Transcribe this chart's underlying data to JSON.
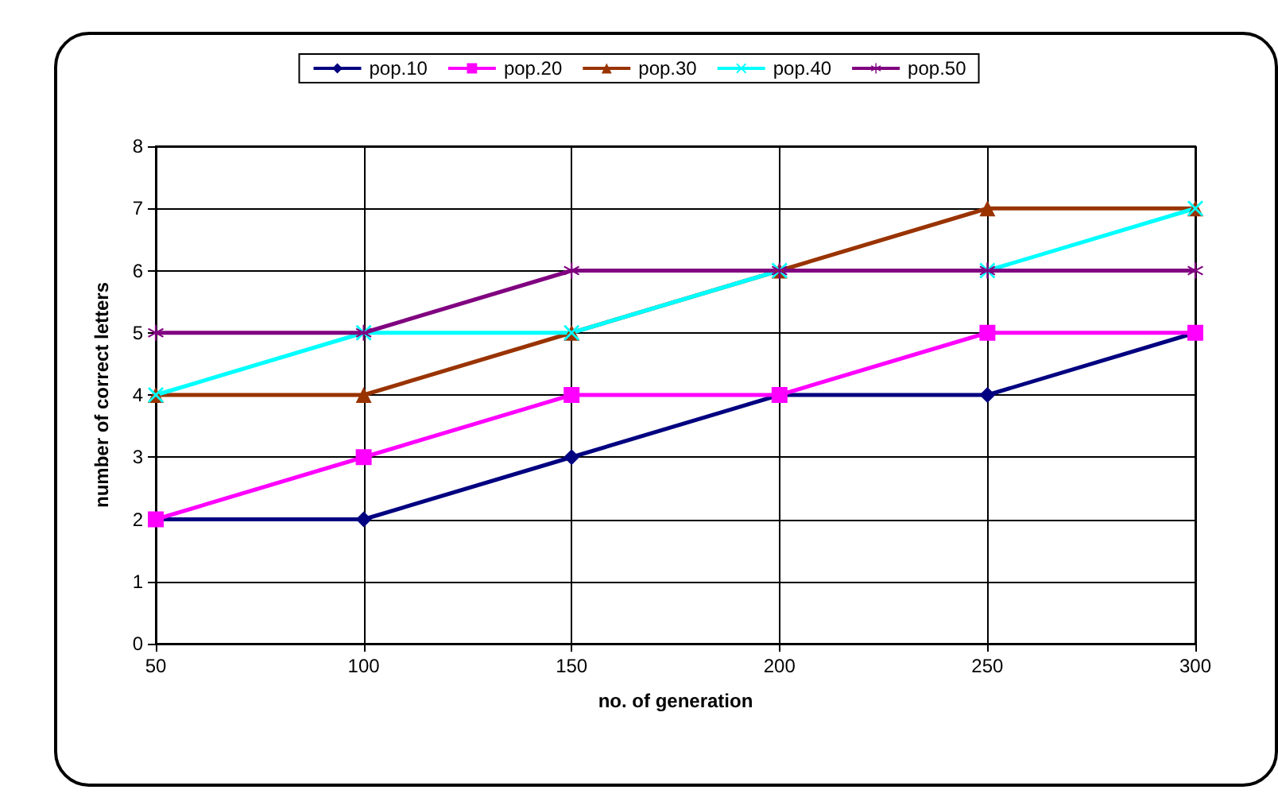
{
  "chart_data": {
    "type": "line",
    "xlabel": "no. of generation",
    "ylabel": "number of correct letters",
    "categories": [
      "50",
      "100",
      "150",
      "200",
      "250",
      "300"
    ],
    "ylim": [
      0,
      8
    ],
    "yticks": [
      0,
      1,
      2,
      3,
      4,
      5,
      6,
      7,
      8
    ],
    "grid": true,
    "legend": "top",
    "series": [
      {
        "name": "pop.10",
        "color": "#000080",
        "marker": "diamond",
        "values": [
          2,
          2,
          3,
          4,
          4,
          5
        ]
      },
      {
        "name": "pop.20",
        "color": "#ff00ff",
        "marker": "square",
        "values": [
          2,
          3,
          4,
          4,
          5,
          5
        ]
      },
      {
        "name": "pop.30",
        "color": "#993300",
        "marker": "triangle",
        "values": [
          4,
          4,
          5,
          6,
          7,
          7
        ]
      },
      {
        "name": "pop.40",
        "color": "#00ffff",
        "marker": "cross",
        "values": [
          4,
          5,
          5,
          6,
          6,
          7
        ]
      },
      {
        "name": "pop.50",
        "color": "#800080",
        "marker": "star",
        "values": [
          5,
          5,
          6,
          6,
          6,
          6
        ]
      }
    ]
  }
}
